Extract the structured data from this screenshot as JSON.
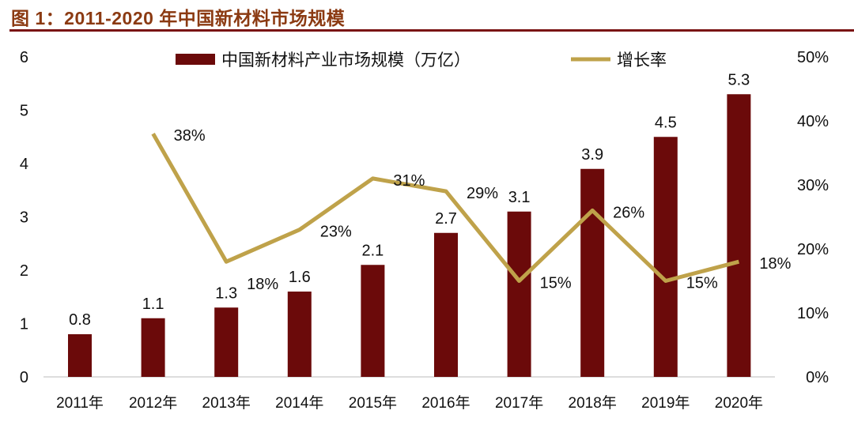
{
  "title": "图 1：2011-2020 年中国新材料市场规模",
  "chart_data": {
    "type": "bar+line",
    "categories": [
      "2011年",
      "2012年",
      "2013年",
      "2014年",
      "2015年",
      "2016年",
      "2017年",
      "2018年",
      "2019年",
      "2020年"
    ],
    "series": [
      {
        "name": "中国新材料产业市场规模（万亿）",
        "type": "bar",
        "axis": "left",
        "values": [
          0.8,
          1.1,
          1.3,
          1.6,
          2.1,
          2.7,
          3.1,
          3.9,
          4.5,
          5.3
        ],
        "labels": [
          "0.8",
          "1.1",
          "1.3",
          "1.6",
          "2.1",
          "2.7",
          "3.1",
          "3.9",
          "4.5",
          "5.3"
        ]
      },
      {
        "name": "增长率",
        "type": "line",
        "axis": "right",
        "values": [
          null,
          38,
          18,
          23,
          31,
          29,
          15,
          26,
          15,
          18
        ],
        "labels": [
          "",
          "38%",
          "18%",
          "23%",
          "31%",
          "29%",
          "15%",
          "26%",
          "15%",
          "18%"
        ]
      }
    ],
    "ylim_left": [
      0,
      6
    ],
    "yticks_left": [
      "0",
      "1",
      "2",
      "3",
      "4",
      "5",
      "6"
    ],
    "ylim_right": [
      0,
      50
    ],
    "yticks_right": [
      "0%",
      "10%",
      "20%",
      "30%",
      "40%",
      "50%"
    ],
    "legend_placement": "top",
    "grid": false,
    "colors": {
      "bar": "#6b0a0a",
      "line": "#bfa24a",
      "title": "#8b3a12",
      "rule": "#7a1414"
    }
  }
}
